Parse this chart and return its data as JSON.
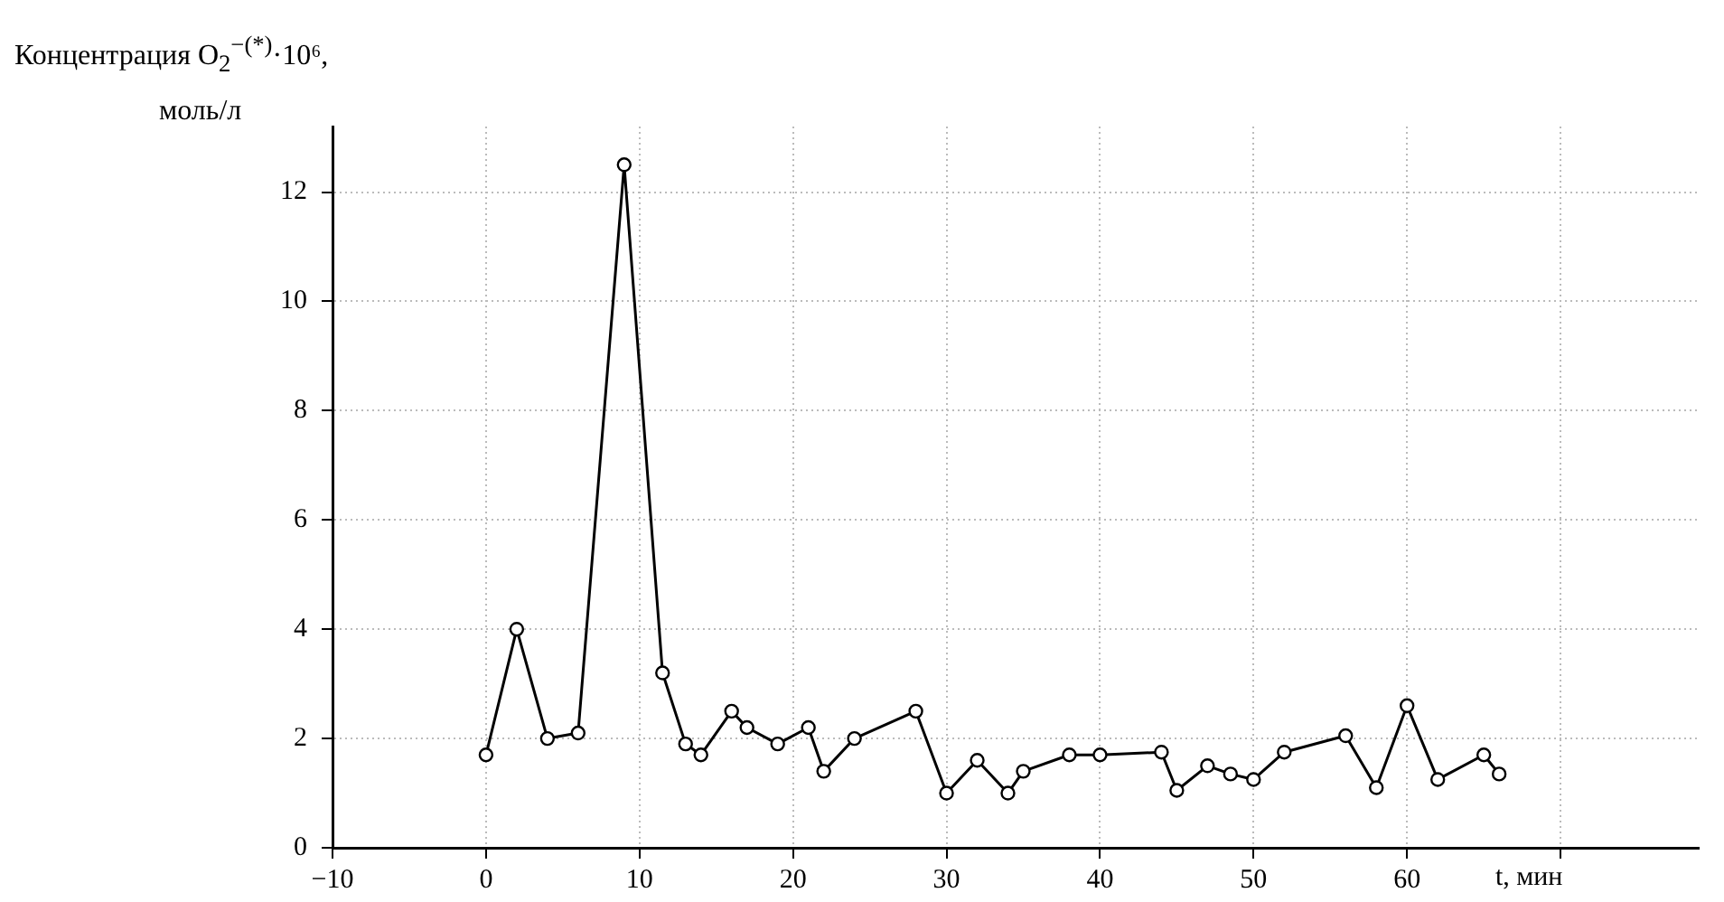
{
  "chart_data": {
    "type": "line",
    "ylabel": "Концентрация O$_{2}$$^{−(*)}$·10⁶,\nмоль/л",
    "xlabel": "t, мин",
    "x": [
      0,
      2,
      4,
      6,
      9,
      11.5,
      13,
      14,
      16,
      17,
      19,
      21,
      22,
      24,
      28,
      30,
      32,
      34,
      35,
      38,
      40,
      44,
      45,
      47,
      48.5,
      50,
      52,
      56,
      58,
      60,
      62,
      65,
      66
    ],
    "series": [
      {
        "color": "#000000",
        "values": [
          1.7,
          4.0,
          2.0,
          2.1,
          12.5,
          3.2,
          1.9,
          1.7,
          2.5,
          2.2,
          1.9,
          2.2,
          1.4,
          2.0,
          2.5,
          1.0,
          1.6,
          1.0,
          1.4,
          1.7,
          1.7,
          1.75,
          1.05,
          1.5,
          1.35,
          1.25,
          1.75,
          2.05,
          1.1,
          2.6,
          1.25,
          1.7,
          1.35
        ]
      }
    ],
    "xlim": [
      -10,
      79
    ],
    "xticks": [
      {
        "value": -10,
        "label": "−10"
      },
      0,
      10,
      20,
      30,
      40,
      50,
      60,
      {
        "value": 70,
        "label": null
      }
    ],
    "ylim": [
      0,
      13.2
    ],
    "yticks": [
      0,
      2,
      4,
      6,
      8,
      10,
      12
    ],
    "grid": true,
    "marker": "circle",
    "line_style": "solid",
    "legend": false
  }
}
